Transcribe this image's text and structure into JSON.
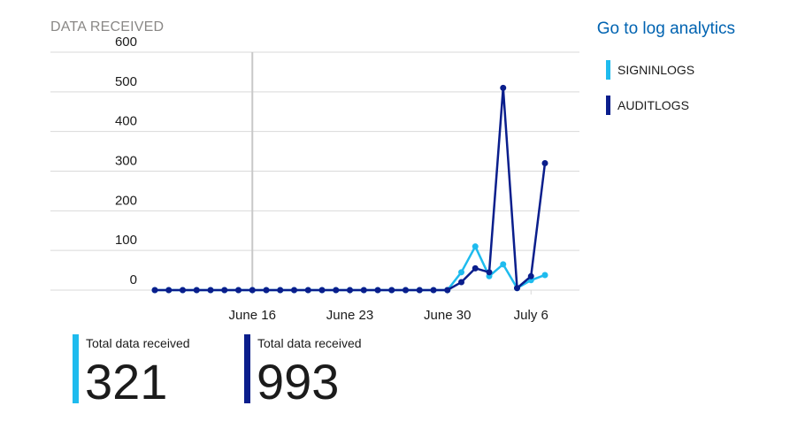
{
  "header": {
    "title": "DATA RECEIVED",
    "link_label": "Go to log analytics"
  },
  "colors": {
    "signin": "#1ebbee",
    "audit": "#0a1e8c",
    "grid": "#d9d9d9",
    "marker_line": "#c8c8c8"
  },
  "chart_data": {
    "type": "line",
    "title": "DATA RECEIVED",
    "xlabel": "",
    "ylabel": "",
    "ylim": [
      0,
      600
    ],
    "yticks": [
      0,
      100,
      200,
      300,
      400,
      500,
      600
    ],
    "xticks": [
      {
        "label": "June 16",
        "date": "2019-06-16"
      },
      {
        "label": "June 23",
        "date": "2019-06-23"
      },
      {
        "label": "June 30",
        "date": "2019-06-30"
      },
      {
        "label": "July 6",
        "date": "2019-07-06"
      }
    ],
    "marker_date": "2019-06-16",
    "x_dates": [
      "2019-06-09",
      "2019-06-10",
      "2019-06-11",
      "2019-06-12",
      "2019-06-13",
      "2019-06-14",
      "2019-06-15",
      "2019-06-16",
      "2019-06-17",
      "2019-06-18",
      "2019-06-19",
      "2019-06-20",
      "2019-06-21",
      "2019-06-22",
      "2019-06-23",
      "2019-06-24",
      "2019-06-25",
      "2019-06-26",
      "2019-06-27",
      "2019-06-28",
      "2019-06-29",
      "2019-06-30",
      "2019-07-01",
      "2019-07-02",
      "2019-07-03",
      "2019-07-04",
      "2019-07-05",
      "2019-07-06",
      "2019-07-07"
    ],
    "series": [
      {
        "name": "SIGNINLOGS",
        "values": [
          0,
          0,
          0,
          0,
          0,
          0,
          0,
          0,
          0,
          0,
          0,
          0,
          0,
          0,
          0,
          0,
          0,
          0,
          0,
          0,
          0,
          0,
          45,
          110,
          35,
          65,
          5,
          25,
          38
        ]
      },
      {
        "name": "AUDITLOGS",
        "values": [
          0,
          0,
          0,
          0,
          0,
          0,
          0,
          0,
          0,
          0,
          0,
          0,
          0,
          0,
          0,
          0,
          0,
          0,
          0,
          0,
          0,
          0,
          20,
          55,
          45,
          510,
          5,
          35,
          320
        ]
      }
    ],
    "grid": true,
    "legend": "right"
  },
  "tiles": [
    {
      "label": "Total data received",
      "value": "321"
    },
    {
      "label": "Total data received",
      "value": "993"
    }
  ]
}
